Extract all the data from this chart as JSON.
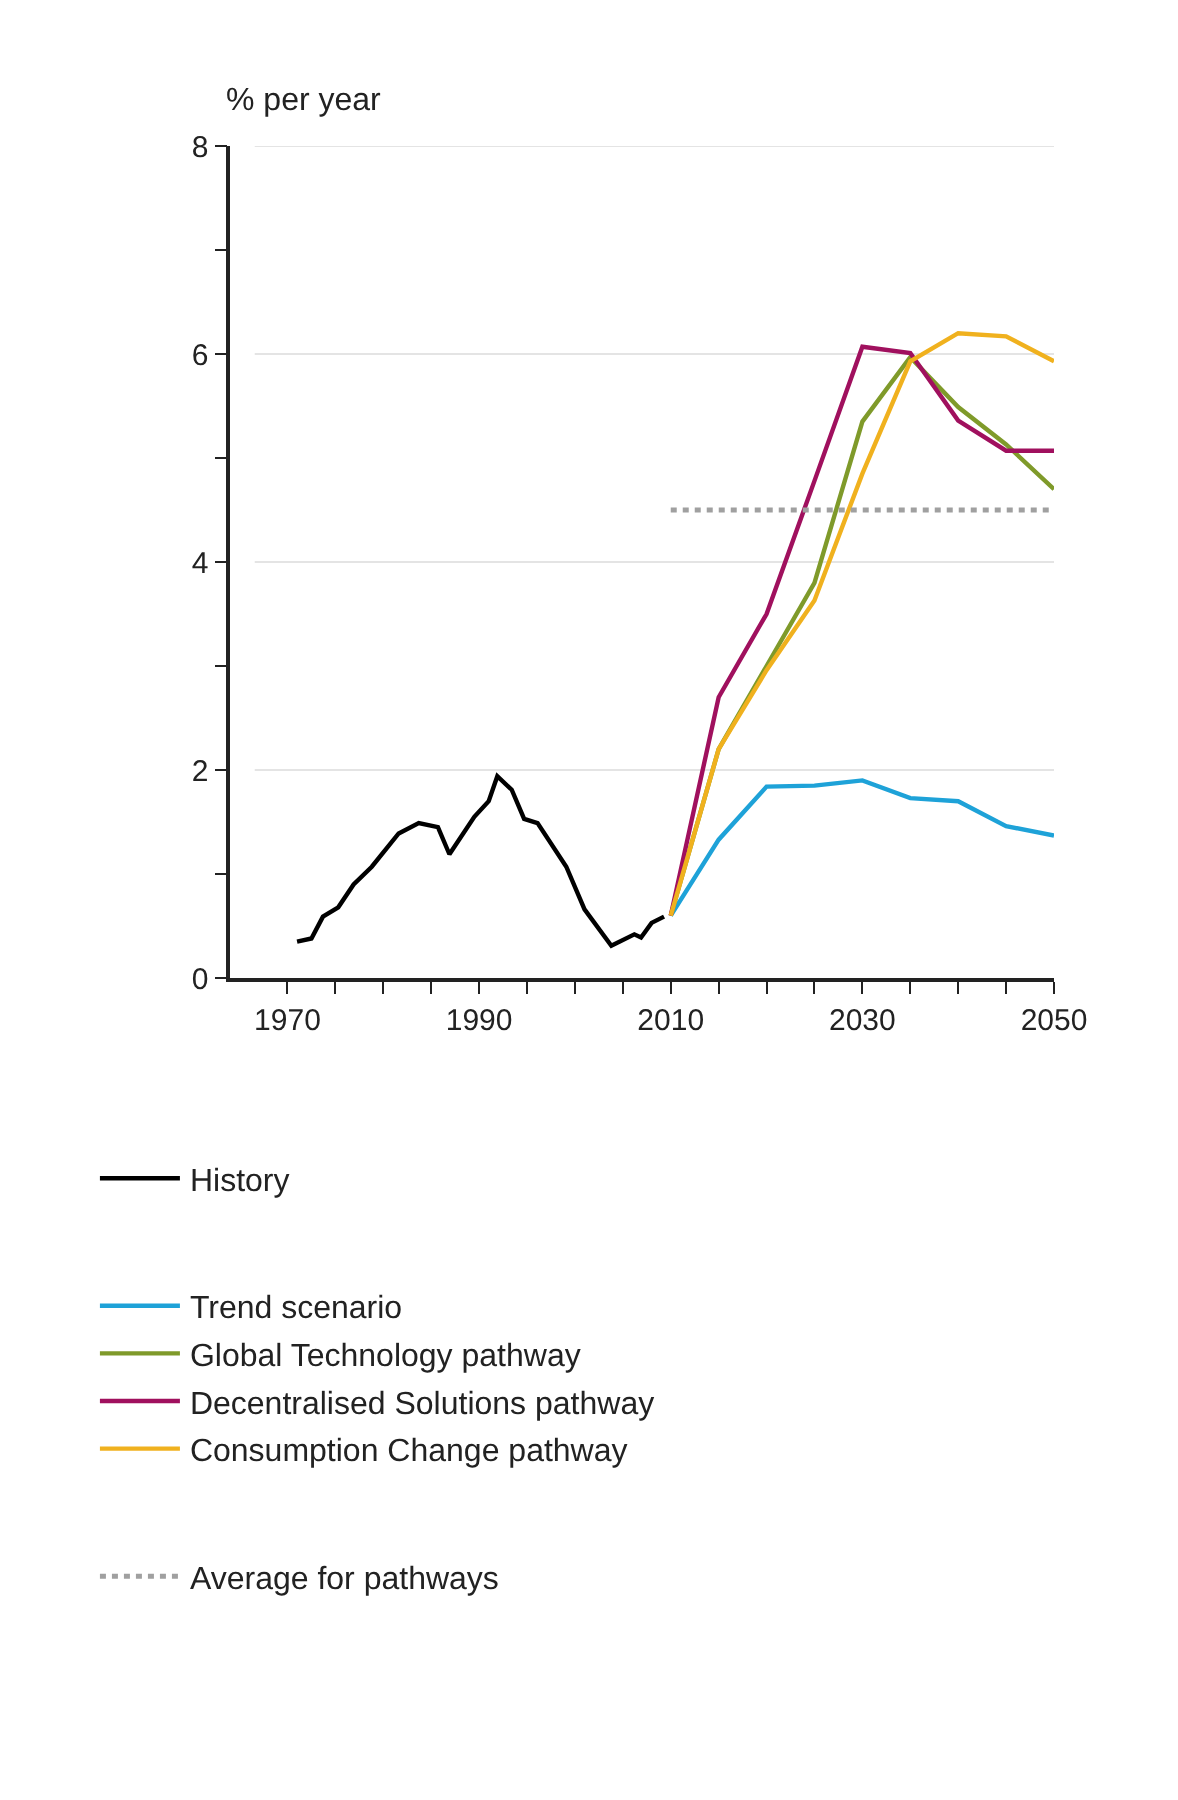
{
  "chart_data": {
    "type": "line",
    "ylabel": "% per year",
    "x": [
      2010,
      2015,
      2020,
      2025,
      2030,
      2035,
      2040,
      2045,
      2050
    ],
    "series": [
      {
        "name": "History",
        "color": "#000000",
        "x": [
          1971,
          1972.5,
          1973.7,
          1975.3,
          1976.9,
          1978.8,
          1981.6,
          1983.7,
          1985.7,
          1986.9,
          1989.5,
          1991,
          1991.9,
          1993.4,
          1994.7,
          1996.1,
          1999.1,
          2001,
          2003.8,
          2006.2,
          2006.9,
          2008,
          2009.3
        ],
        "values": [
          0.35,
          0.38,
          0.59,
          0.68,
          0.9,
          1.07,
          1.39,
          1.49,
          1.45,
          1.19,
          1.55,
          1.7,
          1.94,
          1.81,
          1.53,
          1.49,
          1.07,
          0.66,
          0.31,
          0.42,
          0.39,
          0.53,
          0.59
        ]
      },
      {
        "name": "Trend scenario",
        "color": "#1ea2d8",
        "values": [
          0.6,
          1.33,
          1.84,
          1.85,
          1.9,
          1.73,
          1.7,
          1.46,
          1.37
        ]
      },
      {
        "name": "Global Technology pathway",
        "color": "#7f9a2a",
        "values": [
          0.6,
          2.2,
          3.0,
          3.8,
          5.35,
          5.97,
          5.49,
          5.13,
          4.7
        ]
      },
      {
        "name": "Decentralised Solutions pathway",
        "color": "#a0105e",
        "values": [
          0.6,
          2.7,
          3.5,
          4.78,
          6.07,
          6.01,
          5.36,
          5.07,
          5.07
        ]
      },
      {
        "name": "Consumption Change pathway",
        "color": "#f0b11e",
        "values": [
          0.6,
          2.2,
          2.96,
          3.63,
          4.85,
          5.93,
          6.2,
          6.17,
          5.93
        ]
      },
      {
        "name": "Average for pathways",
        "color": "#a0a0a0",
        "line_style": "dotted",
        "x": [
          2010,
          2050
        ],
        "values": [
          4.5,
          4.5
        ]
      }
    ],
    "xlim": [
      1964,
      2050
    ],
    "xticks": [
      1970,
      {
        "value": 1975,
        "label": null
      },
      {
        "value": 1980,
        "label": null
      },
      {
        "value": 1985,
        "label": null
      },
      1990,
      {
        "value": 1995,
        "label": null
      },
      {
        "value": 2000,
        "label": null
      },
      {
        "value": 2005,
        "label": null
      },
      2010,
      {
        "value": 2015,
        "label": null
      },
      {
        "value": 2020,
        "label": null
      },
      {
        "value": 2025,
        "label": null
      },
      2030,
      {
        "value": 2035,
        "label": null
      },
      {
        "value": 2040,
        "label": null
      },
      {
        "value": 2045,
        "label": null
      },
      2050
    ],
    "ylim": [
      0,
      8
    ],
    "yticks": [
      0,
      {
        "value": 1,
        "label": null
      },
      2,
      {
        "value": 3,
        "label": null
      },
      4,
      {
        "value": 5,
        "label": null
      },
      6,
      {
        "value": 7,
        "label": null
      },
      8
    ],
    "grid": "y",
    "legend": "bottom",
    "line_style": "solid",
    "marker": "none"
  }
}
